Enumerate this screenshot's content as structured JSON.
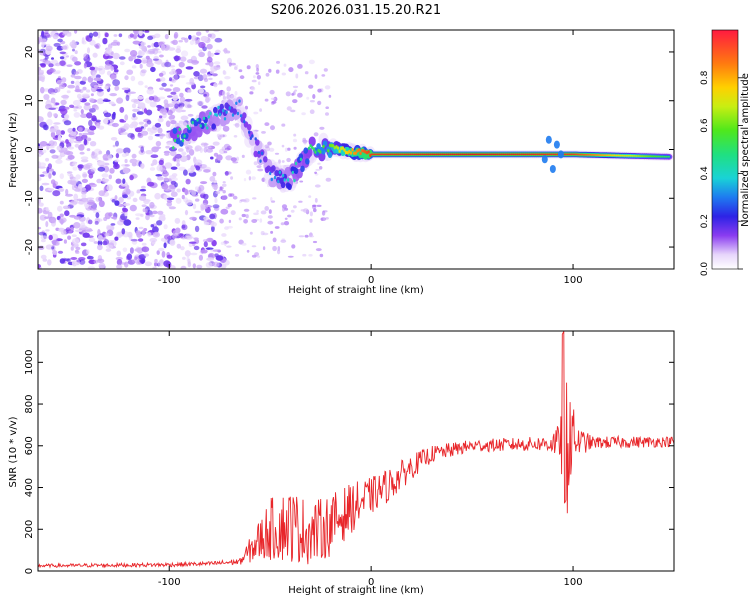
{
  "title": "S206.2026.031.15.20.R21",
  "colors": {
    "snr_line": "#e8262a",
    "axis": "#000000",
    "band_core": "#d9141e",
    "speckle_dark": "#6c2ee0",
    "speckle_light": "#c39af2"
  },
  "chart_data": [
    {
      "type": "heatmap",
      "title": "S206.2026.031.15.20.R21",
      "xlabel": "Height of straight line (km)",
      "ylabel": "Frequency (Hz)",
      "xlim": [
        -165,
        150
      ],
      "ylim": [
        -24.5,
        24.5
      ],
      "xticks": [
        -100,
        0,
        100
      ],
      "yticks": [
        -20,
        -10,
        0,
        10,
        20
      ],
      "colorbar": {
        "label": "Normalized spectral amplitude",
        "range": [
          0,
          1
        ],
        "ticks": [
          "0.0",
          "0.2",
          "0.4",
          "0.6",
          "0.8"
        ],
        "tick_values": [
          0,
          0.2,
          0.4,
          0.6,
          0.8
        ]
      },
      "ridge": {
        "description_points": [
          {
            "x": -98,
            "freq": 2,
            "amp": 0.5
          },
          {
            "x": -85,
            "freq": 5,
            "amp": 0.45
          },
          {
            "x": -75,
            "freq": 7,
            "amp": 0.35
          },
          {
            "x": -65,
            "freq": 9,
            "amp": 0.3
          },
          {
            "x": -60,
            "freq": 3,
            "amp": 0.25
          },
          {
            "x": -50,
            "freq": -5,
            "amp": 0.3
          },
          {
            "x": -40,
            "freq": -6,
            "amp": 0.4
          },
          {
            "x": -30,
            "freq": 0,
            "amp": 0.5
          },
          {
            "x": -20,
            "freq": 0.5,
            "amp": 0.6
          },
          {
            "x": -10,
            "freq": -0.5,
            "amp": 0.8
          },
          {
            "x": 0,
            "freq": -1,
            "amp": 0.95
          },
          {
            "x": 50,
            "freq": -1,
            "amp": 1.0
          },
          {
            "x": 100,
            "freq": -1,
            "amp": 0.95
          },
          {
            "x": 148,
            "freq": -1.5,
            "amp": 0.5
          }
        ]
      }
    },
    {
      "type": "line",
      "xlabel": "Height of straight line (km)",
      "ylabel": "SNR (10 * v/v)",
      "xlim": [
        -165,
        150
      ],
      "ylim": [
        0,
        1150
      ],
      "xticks": [
        -100,
        0,
        100
      ],
      "yticks": [
        0,
        200,
        400,
        600,
        800,
        1000
      ],
      "series": [
        {
          "name": "SNR",
          "envelope": [
            {
              "x": -165,
              "y": 25,
              "noise": 8
            },
            {
              "x": -100,
              "y": 30,
              "noise": 10
            },
            {
              "x": -80,
              "y": 35,
              "noise": 10
            },
            {
              "x": -65,
              "y": 45,
              "noise": 15
            },
            {
              "x": -58,
              "y": 120,
              "noise": 80
            },
            {
              "x": -50,
              "y": 200,
              "noise": 150
            },
            {
              "x": -40,
              "y": 220,
              "noise": 180
            },
            {
              "x": -30,
              "y": 180,
              "noise": 150
            },
            {
              "x": -20,
              "y": 220,
              "noise": 150
            },
            {
              "x": -10,
              "y": 300,
              "noise": 120
            },
            {
              "x": 0,
              "y": 360,
              "noise": 90
            },
            {
              "x": 10,
              "y": 420,
              "noise": 80
            },
            {
              "x": 20,
              "y": 500,
              "noise": 60
            },
            {
              "x": 30,
              "y": 560,
              "noise": 40
            },
            {
              "x": 50,
              "y": 600,
              "noise": 30
            },
            {
              "x": 85,
              "y": 610,
              "noise": 35
            },
            {
              "x": 93,
              "y": 620,
              "noise": 80
            },
            {
              "x": 97,
              "y": 700,
              "noise": 450
            },
            {
              "x": 101,
              "y": 620,
              "noise": 80
            },
            {
              "x": 110,
              "y": 615,
              "noise": 30
            },
            {
              "x": 150,
              "y": 620,
              "noise": 25
            }
          ]
        }
      ]
    }
  ]
}
